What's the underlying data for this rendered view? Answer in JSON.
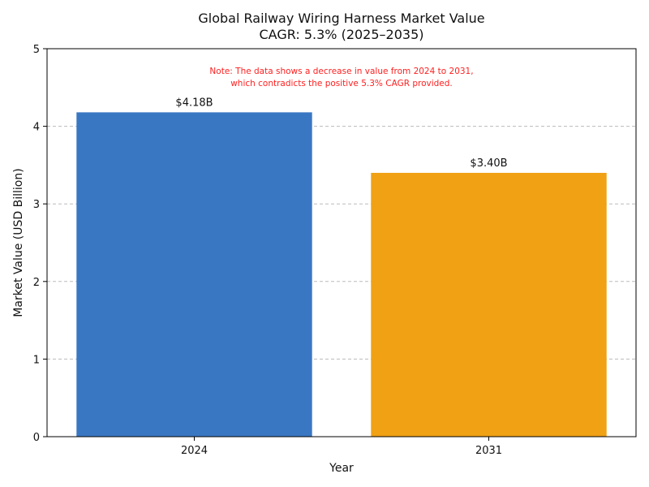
{
  "colors": {
    "series_2024": "#3a77c3",
    "series_2031": "#f0a114",
    "note": "#ff2020",
    "grid": "#bbbbbb",
    "axis": "#000000"
  },
  "chart_data": {
    "type": "bar",
    "title": "Global Railway Wiring Harness Market Value",
    "subtitle": "CAGR: 5.3% (2025–2035)",
    "xlabel": "Year",
    "ylabel": "Market Value (USD Billion)",
    "categories": [
      "2024",
      "2031"
    ],
    "values": [
      4.18,
      3.4
    ],
    "data_labels": [
      "$4.18B",
      "$3.40B"
    ],
    "bar_colors": [
      "#3a77c3",
      "#f0a114"
    ],
    "ylim": [
      0,
      5
    ],
    "yticks": [
      "0",
      "1",
      "2",
      "3",
      "4",
      "5"
    ],
    "grid": "y-dashed",
    "annotation": {
      "line1": "Note: The data shows a decrease in value from 2024 to 2031,",
      "line2": "which contradicts the positive 5.3% CAGR provided."
    }
  }
}
